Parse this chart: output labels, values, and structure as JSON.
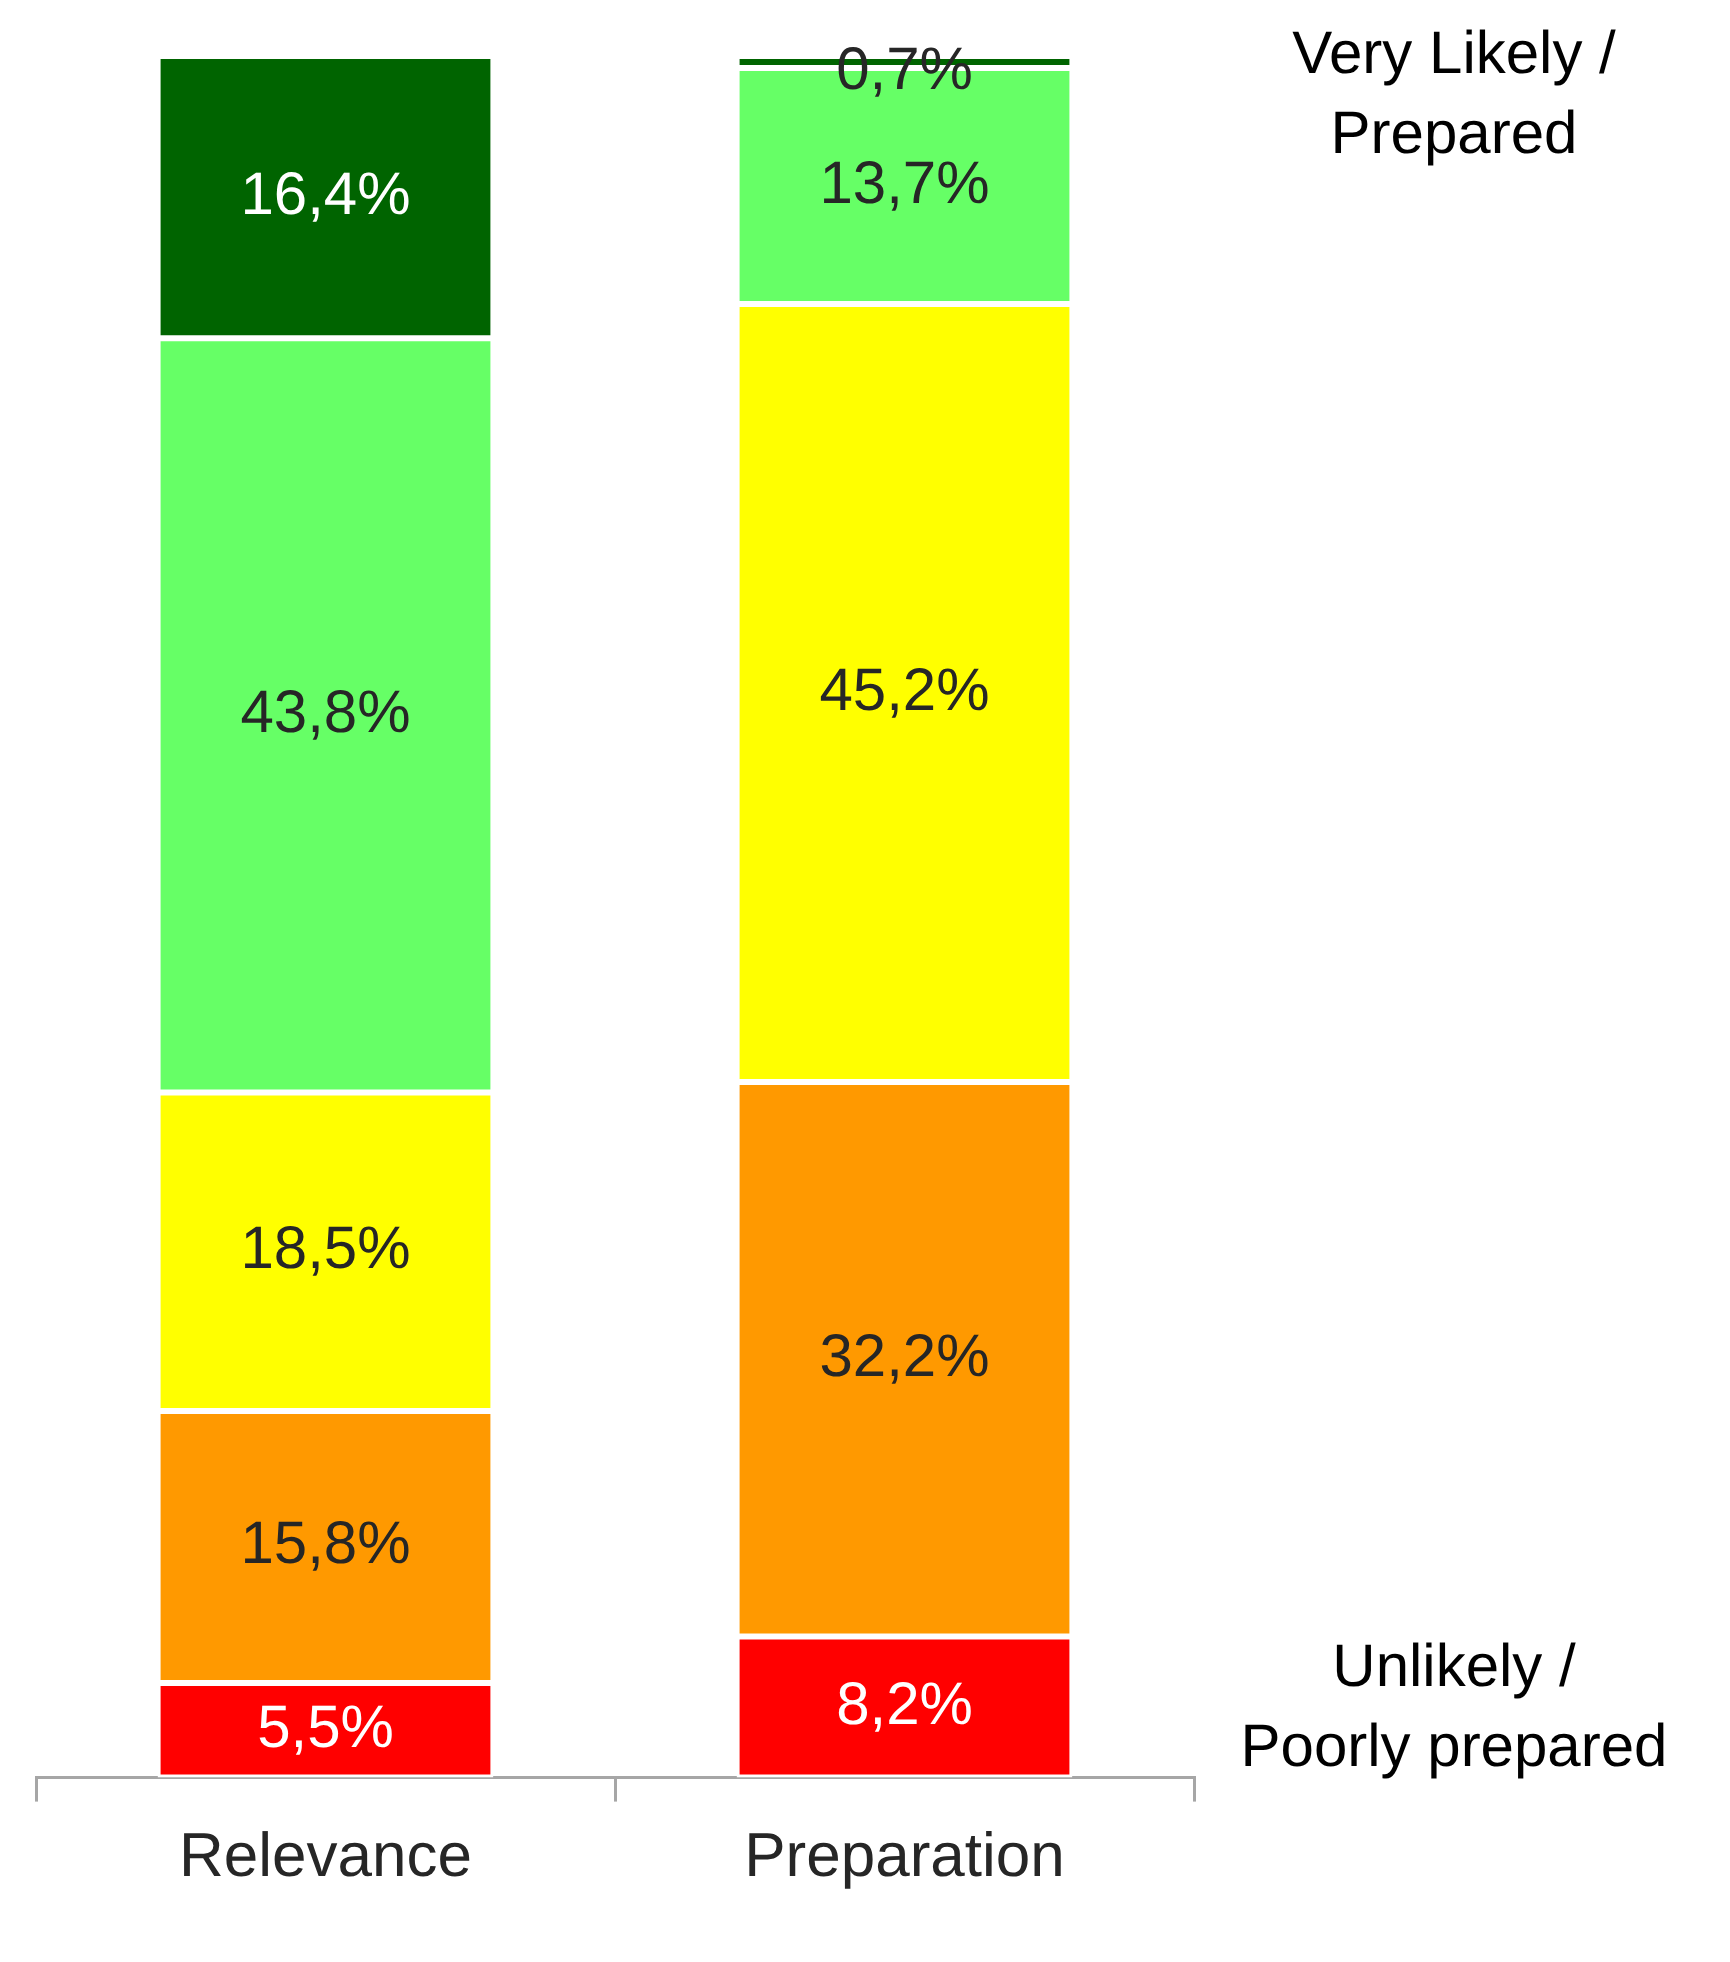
{
  "chart_data": {
    "type": "bar",
    "stacked": true,
    "categories": [
      "Relevance",
      "Preparation"
    ],
    "ylim": [
      0,
      100
    ],
    "tick_labels": "x",
    "grid": false,
    "legend": false,
    "series": [
      {
        "color": "#ff0000",
        "values": [
          5.5,
          8.2
        ],
        "value_labels": [
          "5,5%",
          "8,2%"
        ]
      },
      {
        "color": "#ff9900",
        "values": [
          15.8,
          32.2
        ],
        "value_labels": [
          "15,8%",
          "32,2%"
        ]
      },
      {
        "color": "#ffff00",
        "values": [
          18.5,
          45.2
        ],
        "value_labels": [
          "18,5%",
          "45,2%"
        ]
      },
      {
        "color": "#66ff66",
        "values": [
          43.8,
          13.7
        ],
        "value_labels": [
          "43,8%",
          "13,7%"
        ]
      },
      {
        "color": "#006400",
        "values": [
          16.4,
          0.7
        ],
        "value_labels": [
          "16,4%",
          "0,7%"
        ]
      }
    ],
    "annotations": [
      "Very Likely / Prepared",
      "Unlikely / Poorly prepared"
    ]
  }
}
